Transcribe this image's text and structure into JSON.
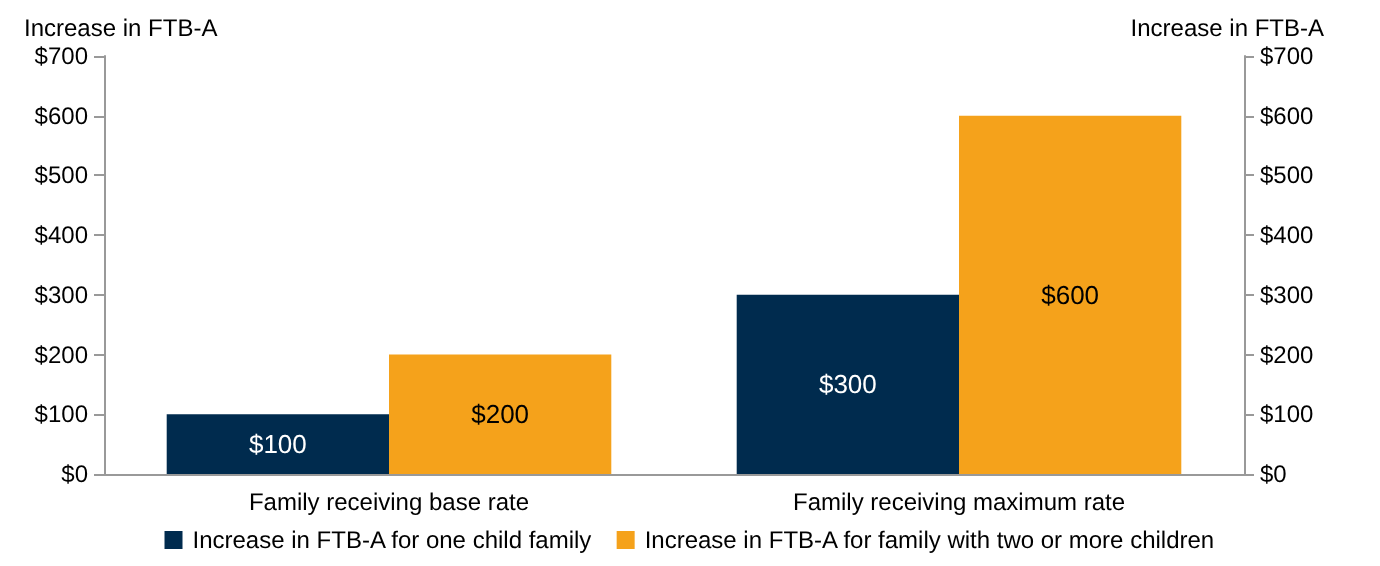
{
  "chart_data": {
    "type": "bar",
    "ylabel": "Increase in FTB-A",
    "y2label": "Increase in FTB-A",
    "categories": [
      "Family receiving base rate",
      "Family receiving maximum rate"
    ],
    "series": [
      {
        "name": "Increase in FTB-A for one child family",
        "color": "#002b4e",
        "values": [
          100,
          300
        ],
        "value_labels": [
          "$100",
          "$300"
        ]
      },
      {
        "name": "Increase in FTB-A for family with two or more children",
        "color": "#f5a21b",
        "values": [
          200,
          600
        ],
        "value_labels": [
          "$200",
          "$600"
        ]
      }
    ],
    "ylim": [
      0,
      700
    ],
    "yticks": [
      {
        "value": 0,
        "label": "$0"
      },
      {
        "value": 100,
        "label": "$100"
      },
      {
        "value": 200,
        "label": "$200"
      },
      {
        "value": 300,
        "label": "$300"
      },
      {
        "value": 400,
        "label": "$400"
      },
      {
        "value": 500,
        "label": "$500"
      },
      {
        "value": 600,
        "label": "$600"
      },
      {
        "value": 700,
        "label": "$700"
      }
    ],
    "y2lim": [
      0,
      700
    ],
    "y2ticks": [
      {
        "value": 0,
        "label": "$0"
      },
      {
        "value": 100,
        "label": "$100"
      },
      {
        "value": 200,
        "label": "$200"
      },
      {
        "value": 300,
        "label": "$300"
      },
      {
        "value": 400,
        "label": "$400"
      },
      {
        "value": 500,
        "label": "$500"
      },
      {
        "value": 600,
        "label": "$600"
      },
      {
        "value": 700,
        "label": "$700"
      }
    ],
    "grid": false,
    "legend": "bottom"
  }
}
